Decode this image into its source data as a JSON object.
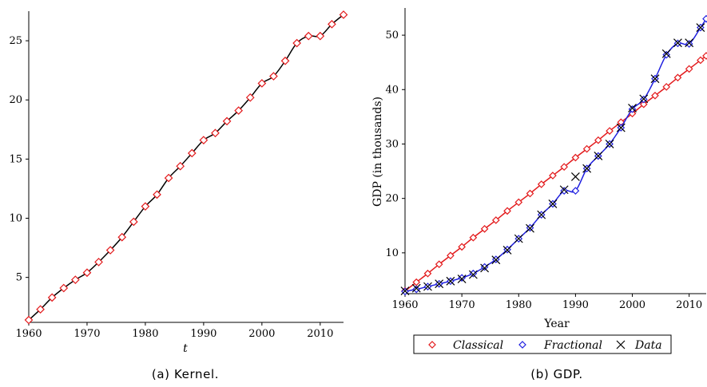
{
  "chart_data": [
    {
      "type": "line",
      "caption": "(a) Kernel.",
      "title": "",
      "xlabel": "t",
      "ylabel": "",
      "xlim": [
        1960,
        2014
      ],
      "ylim": [
        1.2,
        27.5
      ],
      "xticks": [
        1960,
        1970,
        1980,
        1990,
        2000,
        2010
      ],
      "yticks": [
        5,
        10,
        15,
        20,
        25
      ],
      "grid": false,
      "colors": {
        "line": "#000000",
        "marker": "#e31a1c"
      },
      "series": [
        {
          "x": [
            1960,
            1962,
            1964,
            1966,
            1968,
            1970,
            1972,
            1974,
            1976,
            1978,
            1980,
            1982,
            1984,
            1986,
            1988,
            1990,
            1992,
            1994,
            1996,
            1998,
            2000,
            2002,
            2004,
            2006,
            2008,
            2010,
            2012,
            2014
          ],
          "values": [
            1.4,
            2.3,
            3.3,
            4.1,
            4.8,
            5.4,
            6.3,
            7.3,
            8.4,
            9.7,
            11.0,
            12.0,
            13.4,
            14.4,
            15.5,
            16.6,
            17.2,
            18.2,
            19.1,
            20.2,
            21.4,
            22.0,
            23.3,
            24.8,
            25.4,
            25.4,
            26.4,
            27.2
          ]
        }
      ]
    },
    {
      "type": "line",
      "caption": "(b) GDP.",
      "title": "",
      "xlabel": "Year",
      "ylabel": "GDP (in thousands)",
      "xlim": [
        1960,
        2013
      ],
      "ylim": [
        2.5,
        55
      ],
      "xticks": [
        1960,
        1970,
        1980,
        1990,
        2000,
        2010
      ],
      "yticks": [
        10,
        20,
        30,
        40,
        50
      ],
      "grid": false,
      "legend_position": "bottom",
      "series": [
        {
          "name": "Classical",
          "color": "#e31a1c",
          "marker": "diamond",
          "x": [
            1960,
            1962,
            1964,
            1966,
            1968,
            1970,
            1972,
            1974,
            1976,
            1978,
            1980,
            1982,
            1984,
            1986,
            1988,
            1990,
            1992,
            1994,
            1996,
            1998,
            2000,
            2002,
            2004,
            2006,
            2008,
            2010,
            2012,
            2013
          ],
          "values": [
            3.0,
            4.6,
            6.2,
            7.9,
            9.5,
            11.1,
            12.8,
            14.4,
            16.0,
            17.7,
            19.3,
            20.9,
            22.6,
            24.2,
            25.8,
            27.5,
            29.1,
            30.7,
            32.4,
            34.0,
            35.6,
            37.3,
            38.9,
            40.5,
            42.2,
            43.8,
            45.4,
            46.2
          ]
        },
        {
          "name": "Fractional",
          "color": "#1f1fe0",
          "marker": "diamond",
          "x": [
            1960,
            1962,
            1964,
            1966,
            1968,
            1970,
            1972,
            1974,
            1976,
            1978,
            1980,
            1982,
            1984,
            1986,
            1988,
            1990,
            1992,
            1994,
            1996,
            1998,
            2000,
            2002,
            2004,
            2006,
            2008,
            2010,
            2012,
            2013
          ],
          "values": [
            2.9,
            3.3,
            3.8,
            4.3,
            4.8,
            5.4,
            6.2,
            7.4,
            8.8,
            10.6,
            12.6,
            14.6,
            17.0,
            19.0,
            21.4,
            21.4,
            25.5,
            27.8,
            30.0,
            33.0,
            36.4,
            38.2,
            42.0,
            46.4,
            48.5,
            48.4,
            51.4,
            53.0
          ]
        },
        {
          "name": "Data",
          "color": "#000000",
          "marker": "x",
          "x": [
            1960,
            1962,
            1964,
            1966,
            1968,
            1970,
            1972,
            1974,
            1976,
            1978,
            1980,
            1982,
            1984,
            1986,
            1988,
            1990,
            1992,
            1994,
            1996,
            1998,
            2000,
            2002,
            2004,
            2006,
            2008,
            2010,
            2012
          ],
          "values": [
            3.0,
            3.5,
            3.8,
            4.3,
            4.8,
            5.2,
            6.0,
            7.2,
            8.7,
            10.5,
            12.6,
            14.5,
            17.0,
            19.0,
            21.6,
            24.0,
            25.5,
            27.8,
            30.0,
            33.0,
            36.6,
            38.3,
            42.0,
            46.6,
            48.6,
            48.6,
            51.4
          ]
        }
      ]
    }
  ]
}
